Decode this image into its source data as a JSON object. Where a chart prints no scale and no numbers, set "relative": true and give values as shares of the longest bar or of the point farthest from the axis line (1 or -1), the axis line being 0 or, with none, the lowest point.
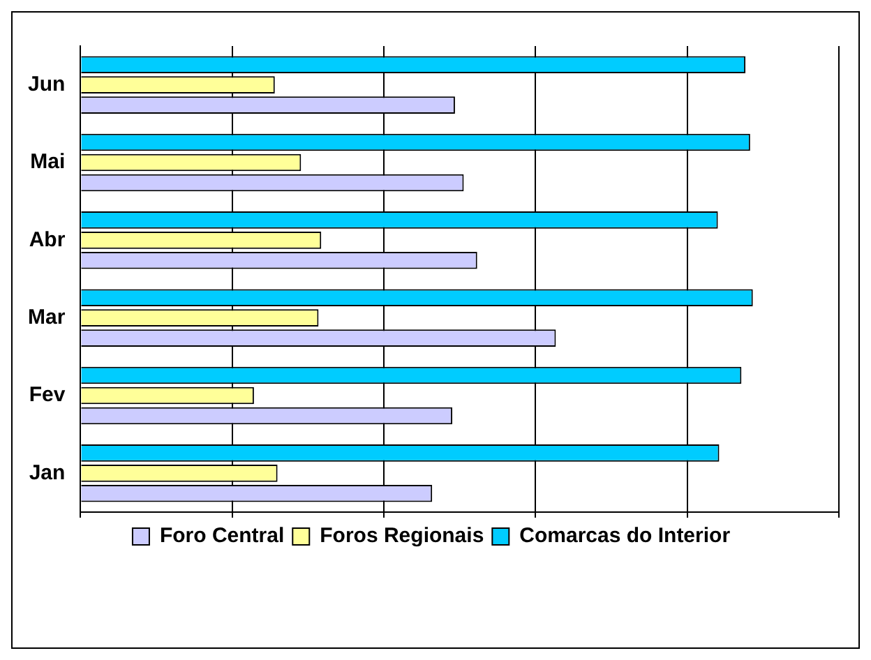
{
  "chart_data": {
    "type": "bar",
    "orientation": "horizontal",
    "relative": true,
    "categories": [
      "Jun",
      "Mai",
      "Abr",
      "Mar",
      "Fev",
      "Jan"
    ],
    "series": [
      {
        "name": "Foro Central",
        "color": "#ccccff",
        "values": [
          0.557,
          0.57,
          0.59,
          0.707,
          0.553,
          0.523
        ]
      },
      {
        "name": "Foros Regionais",
        "color": "#ffff99",
        "values": [
          0.289,
          0.328,
          0.358,
          0.354,
          0.258,
          0.293
        ]
      },
      {
        "name": "Comarcas do Interior",
        "color": "#00ccff",
        "values": [
          0.989,
          0.996,
          0.948,
          1,
          0.983,
          0.95
        ]
      }
    ],
    "grid": "x",
    "legend": "bottom"
  }
}
